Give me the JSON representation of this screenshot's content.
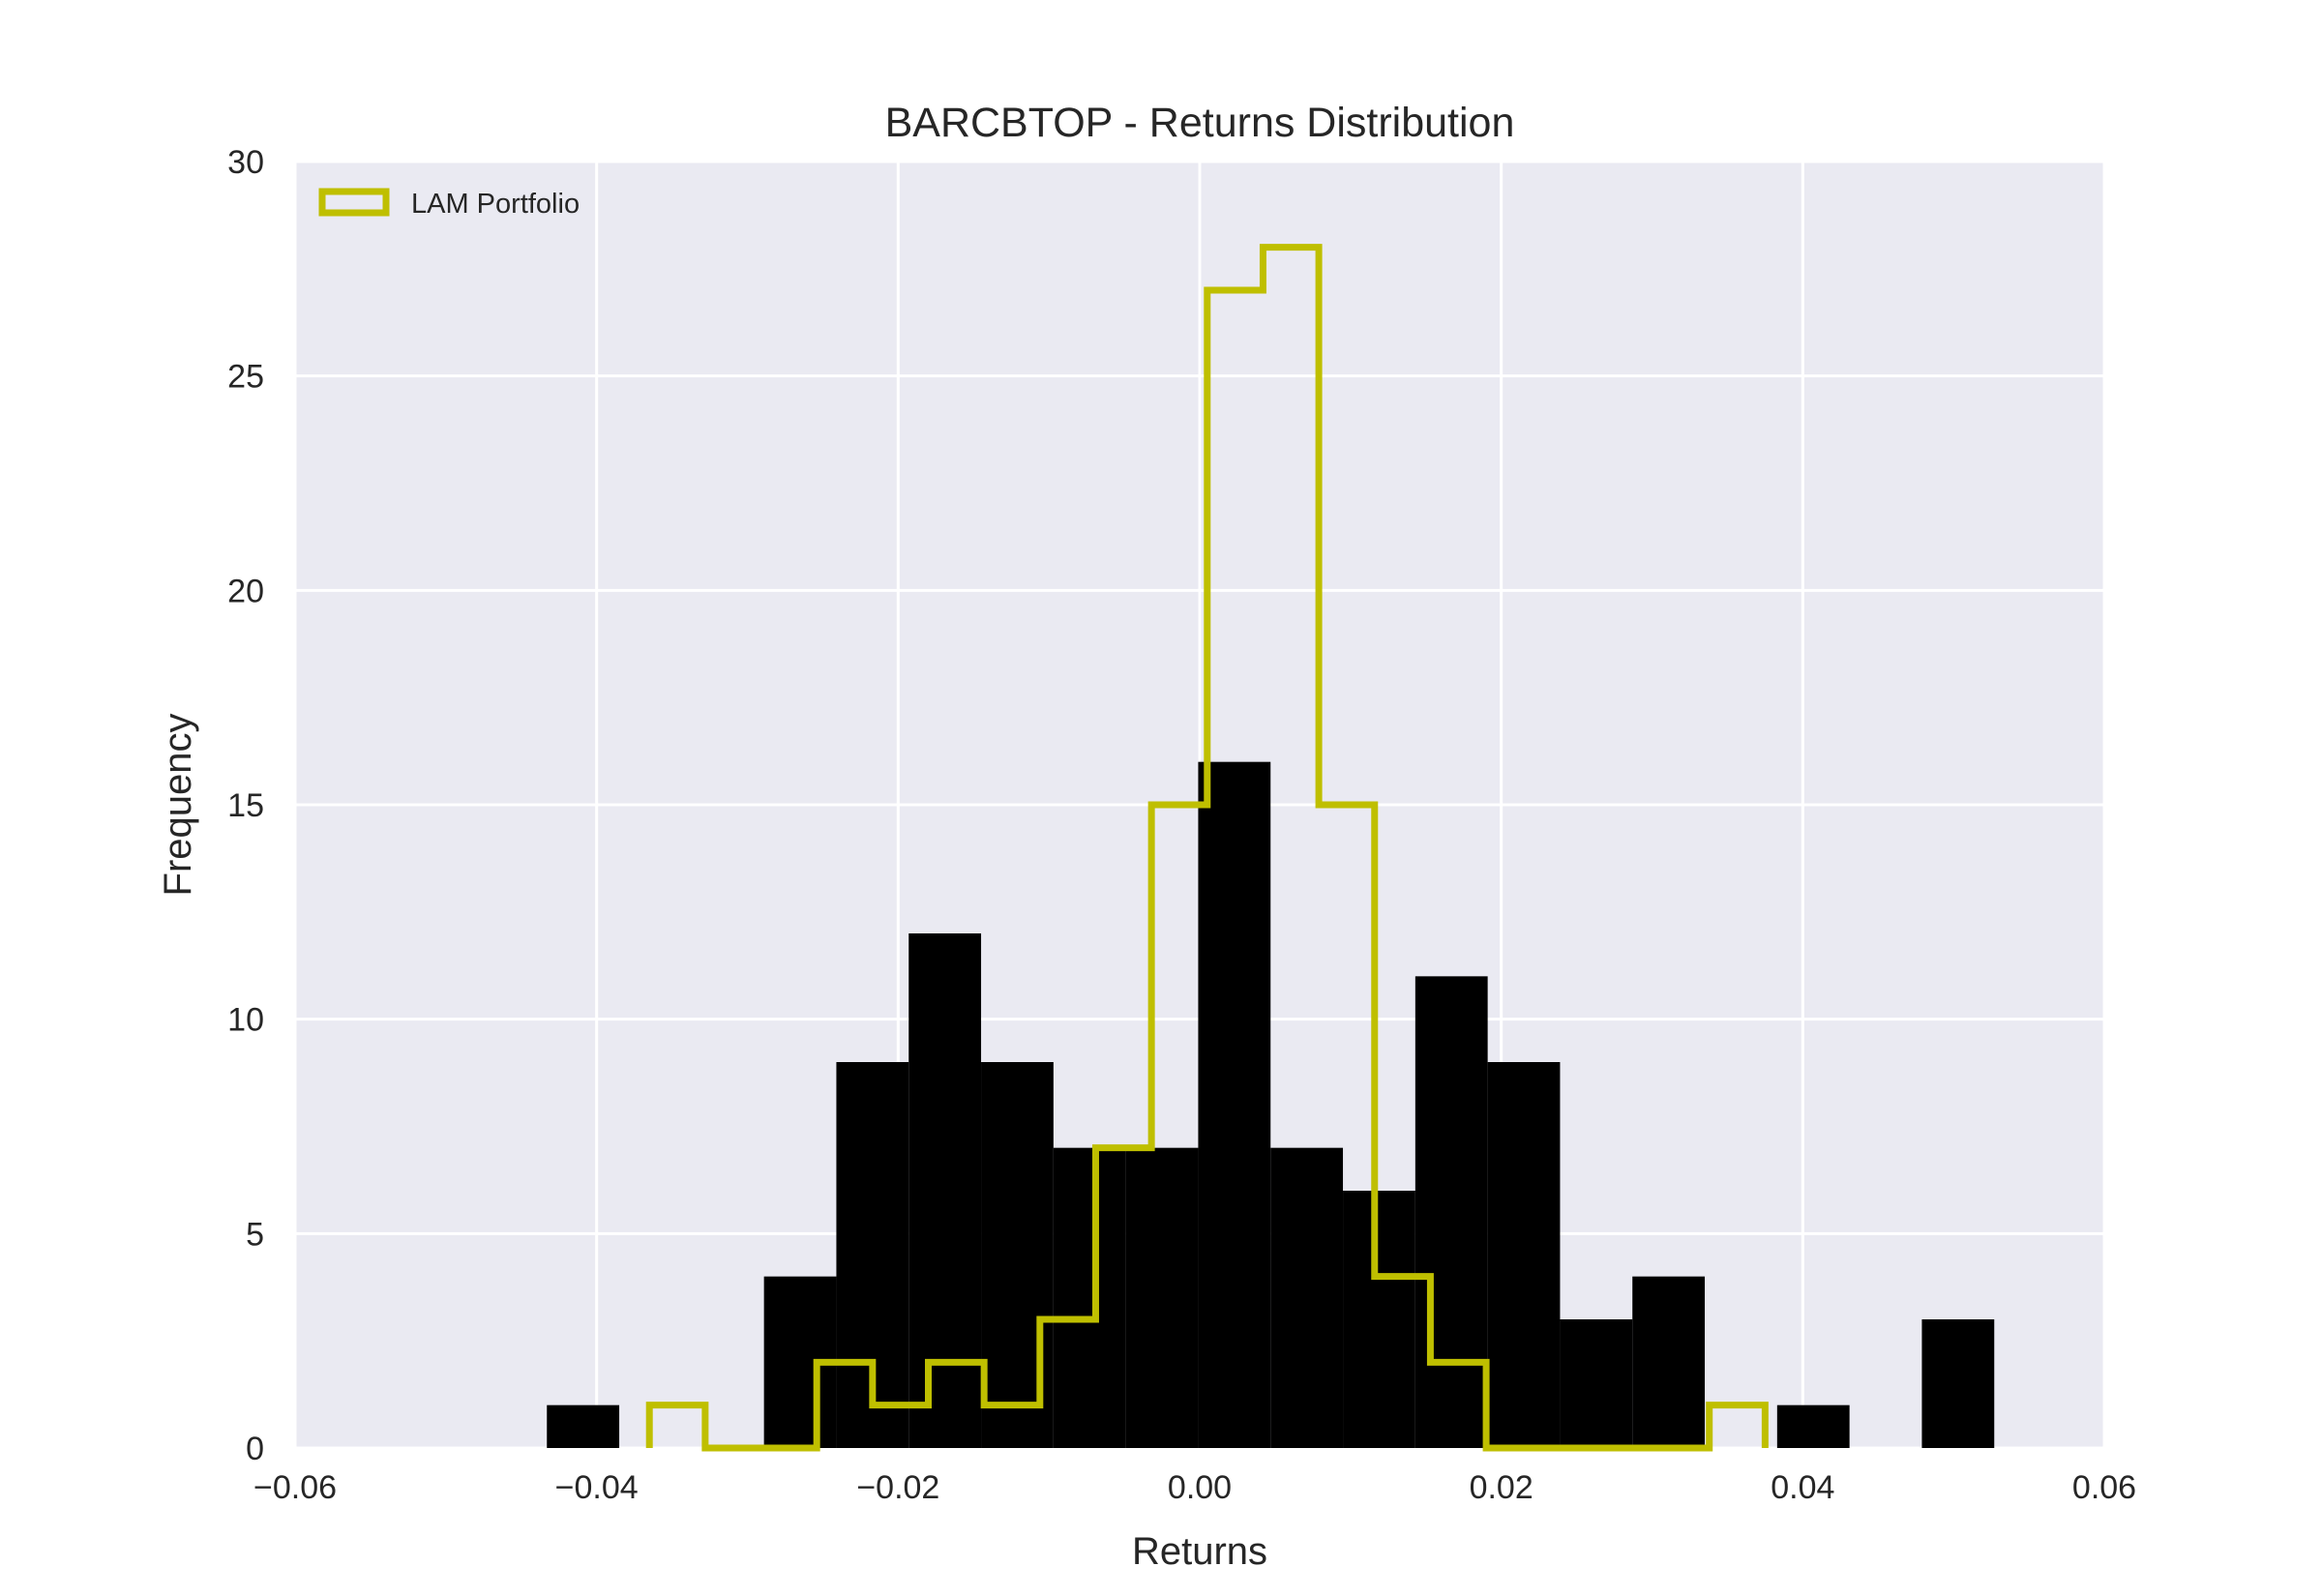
{
  "chart_data": {
    "type": "histogram",
    "title": "BARCBTOP - Returns Distribution",
    "xlabel": "Returns",
    "ylabel": "Frequency",
    "xlim": [
      -0.06,
      0.06
    ],
    "ylim": [
      0,
      30
    ],
    "x_ticks": [
      -0.06,
      -0.04,
      -0.02,
      0.0,
      0.02,
      0.04,
      0.06
    ],
    "x_tick_labels": [
      "−0.06",
      "−0.04",
      "−0.02",
      "0.00",
      "0.02",
      "0.04",
      "0.06"
    ],
    "y_ticks": [
      0,
      5,
      10,
      15,
      20,
      25,
      30
    ],
    "y_tick_labels": [
      "0",
      "5",
      "10",
      "15",
      "20",
      "25",
      "30"
    ],
    "grid": true,
    "legend": {
      "placement": "top-left",
      "entries": [
        "LAM Portfolio"
      ]
    },
    "series": [
      {
        "name": "",
        "style": "filled",
        "color": "#000000",
        "bin_edges": [
          -0.0433,
          -0.0385,
          -0.0337,
          -0.0289,
          -0.0241,
          -0.0193,
          -0.0145,
          -0.0097,
          -0.0049,
          -0.0001,
          0.0047,
          0.0095,
          0.0143,
          0.0191,
          0.0239,
          0.0287,
          0.0335,
          0.0383,
          0.0431,
          0.0479,
          0.0527
        ],
        "counts": [
          1,
          0,
          0,
          4,
          9,
          12,
          9,
          7,
          7,
          16,
          7,
          6,
          11,
          9,
          3,
          4,
          0,
          1,
          0,
          3
        ]
      },
      {
        "name": "LAM Portfolio",
        "style": "step",
        "color": "#bfbf00",
        "bin_edges": [
          -0.0365,
          -0.0328,
          -0.0291,
          -0.0254,
          -0.0217,
          -0.018,
          -0.0143,
          -0.0106,
          -0.0069,
          -0.0032,
          0.0005,
          0.0042,
          0.0079,
          0.0116,
          0.0153,
          0.019,
          0.0227,
          0.0264,
          0.0301,
          0.0338,
          0.0375
        ],
        "counts": [
          1,
          0,
          0,
          2,
          1,
          2,
          1,
          3,
          7,
          15,
          27,
          28,
          15,
          4,
          2,
          0,
          0,
          0,
          0,
          1
        ]
      }
    ]
  }
}
